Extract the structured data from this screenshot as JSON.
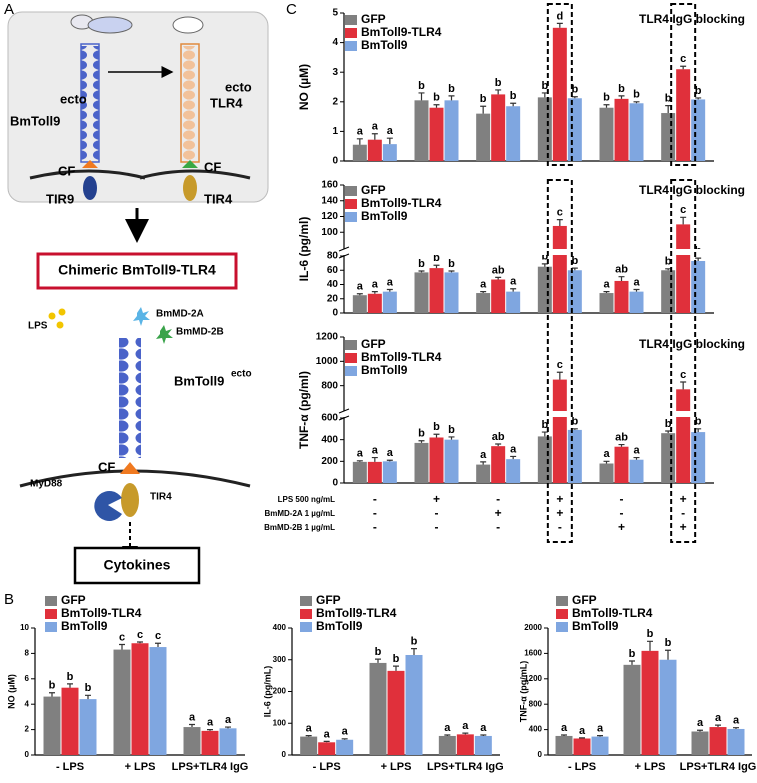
{
  "panel_labels": [
    "A",
    "B",
    "C"
  ],
  "diagram": {
    "top_left_label": "BmToll9",
    "top_left_sup": "ecto",
    "top_right_label": "TLR4",
    "top_right_sup": "ecto",
    "cf_left": "CF",
    "cf_right": "CF",
    "tir_left": "TIR9",
    "tir_right": "TIR4",
    "chimera_title": "Chimeric BmToll9-TLR4",
    "lps": "LPS",
    "md2a": "BmMD-2A",
    "md2b": "BmMD-2B",
    "ecto_label": "BmToll9",
    "ecto_sup": "ecto",
    "cf": "CF",
    "myd88": "MyD88",
    "tir4": "TIR4",
    "output": "Cytokines"
  },
  "conditions": {
    "rows": [
      {
        "label": "LPS 500 ng/mL",
        "values": [
          "-",
          "+",
          "-",
          "+",
          "-",
          "+"
        ]
      },
      {
        "label": "BmMD-2A 1 µg/mL",
        "values": [
          "-",
          "-",
          "+",
          "+",
          "-",
          "-"
        ]
      },
      {
        "label": "BmMD-2B 1 µg/mL",
        "values": [
          "-",
          "-",
          "-",
          "-",
          "+",
          "+"
        ]
      }
    ]
  },
  "chart_data": [
    {
      "type": "bar",
      "ylabel": "NO (µM)",
      "annotation": "TLR4 IgG blocking",
      "ylim": [
        0,
        5
      ],
      "yticks": [
        0,
        1,
        2,
        3,
        4,
        5
      ],
      "series": [
        {
          "name": "GFP",
          "color": "#808080",
          "values": [
            0.55,
            2.05,
            1.6,
            2.15,
            1.8,
            1.62
          ],
          "errors": [
            0.2,
            0.25,
            0.25,
            0.15,
            0.1,
            0.25
          ],
          "letters": [
            "a",
            "b",
            "b",
            "b",
            "b",
            "b"
          ]
        },
        {
          "name": "BmToll9-TLR4",
          "color": "#e0303b",
          "values": [
            0.72,
            1.8,
            2.25,
            4.5,
            2.1,
            3.1
          ],
          "errors": [
            0.2,
            0.1,
            0.15,
            0.15,
            0.1,
            0.1
          ],
          "letters": [
            "a",
            "b",
            "b",
            "d",
            "b",
            "c"
          ]
        },
        {
          "name": "BmToll9",
          "color": "#7fa6e0",
          "values": [
            0.57,
            2.05,
            1.85,
            2.12,
            1.95,
            2.08
          ],
          "errors": [
            0.2,
            0.15,
            0.1,
            0.05,
            0.05,
            0.05
          ],
          "letters": [
            "a",
            "b",
            "b",
            "b",
            "b",
            "b"
          ]
        }
      ]
    },
    {
      "type": "bar",
      "ylabel": "IL-6 (pg/ml)",
      "annotation": "TLR4 IgG blocking",
      "segments": [
        {
          "ylim": [
            0,
            80
          ],
          "yticks": [
            0,
            20,
            40,
            60,
            80
          ]
        },
        {
          "ylim": [
            80,
            160
          ],
          "yticks": [
            100,
            120,
            140,
            160
          ]
        }
      ],
      "series": [
        {
          "name": "GFP",
          "color": "#808080",
          "values": [
            25,
            57,
            28,
            65,
            28,
            60
          ],
          "errors": [
            2,
            2,
            2,
            4,
            2,
            2
          ],
          "letters": [
            "a",
            "b",
            "a",
            "b",
            "a",
            "b"
          ]
        },
        {
          "name": "BmToll9-TLR4",
          "color": "#e0303b",
          "values": [
            27,
            63,
            47,
            108,
            45,
            110
          ],
          "errors": [
            3,
            4,
            3,
            8,
            6,
            9
          ],
          "letters": [
            "a",
            "b",
            "ab",
            "c",
            "ab",
            "c"
          ]
        },
        {
          "name": "BmToll9",
          "color": "#7fa6e0",
          "values": [
            30,
            57,
            30,
            60,
            30,
            73
          ],
          "errors": [
            3,
            2,
            4,
            3,
            3,
            4
          ],
          "letters": [
            "a",
            "b",
            "a",
            "b",
            "a",
            "b"
          ]
        }
      ]
    },
    {
      "type": "bar",
      "ylabel": "TNF-α (pg/ml)",
      "annotation": "TLR4 IgG blocking",
      "segments": [
        {
          "ylim": [
            0,
            600
          ],
          "yticks": [
            0,
            200,
            400,
            600
          ]
        },
        {
          "ylim": [
            600,
            1200
          ],
          "yticks": [
            800,
            1000,
            1200
          ]
        }
      ],
      "series": [
        {
          "name": "GFP",
          "color": "#808080",
          "values": [
            195,
            370,
            170,
            430,
            180,
            460
          ],
          "errors": [
            10,
            20,
            25,
            40,
            20,
            20
          ],
          "letters": [
            "a",
            "b",
            "a",
            "b",
            "a",
            "b"
          ]
        },
        {
          "name": "BmToll9-TLR4",
          "color": "#e0303b",
          "values": [
            195,
            420,
            340,
            850,
            335,
            770
          ],
          "errors": [
            40,
            30,
            20,
            60,
            20,
            60
          ],
          "letters": [
            "a",
            "b",
            "ab",
            "c",
            "ab",
            "c"
          ]
        },
        {
          "name": "BmToll9",
          "color": "#7fa6e0",
          "values": [
            200,
            400,
            220,
            490,
            215,
            470
          ],
          "errors": [
            10,
            25,
            25,
            10,
            20,
            30
          ],
          "letters": [
            "a",
            "b",
            "a",
            "b",
            "a",
            "b"
          ]
        }
      ]
    },
    {
      "type": "bar",
      "ylabel": "NO (µM)",
      "categories": [
        "- LPS",
        "+ LPS",
        "LPS+TLR4 IgG"
      ],
      "ylim": [
        0,
        10
      ],
      "yticks": [
        0,
        2,
        4,
        6,
        8,
        10
      ],
      "series": [
        {
          "name": "GFP",
          "color": "#808080",
          "values": [
            4.6,
            8.3,
            2.2
          ],
          "errors": [
            0.3,
            0.4,
            0.2
          ],
          "letters": [
            "b",
            "c",
            "a"
          ]
        },
        {
          "name": "BmToll9-TLR4",
          "color": "#e0303b",
          "values": [
            5.3,
            8.8,
            1.9
          ],
          "errors": [
            0.3,
            0.1,
            0.1
          ],
          "letters": [
            "b",
            "c",
            "a"
          ]
        },
        {
          "name": "BmToll9",
          "color": "#7fa6e0",
          "values": [
            4.4,
            8.5,
            2.1
          ],
          "errors": [
            0.3,
            0.3,
            0.1
          ],
          "letters": [
            "b",
            "c",
            "a"
          ]
        }
      ]
    },
    {
      "type": "bar",
      "ylabel": "IL-6 (pg/mL)",
      "categories": [
        "- LPS",
        "+ LPS",
        "LPS+TLR4 IgG"
      ],
      "ylim": [
        0,
        400
      ],
      "yticks": [
        0,
        100,
        200,
        300,
        400
      ],
      "series": [
        {
          "name": "GFP",
          "color": "#808080",
          "values": [
            58,
            290,
            60
          ],
          "errors": [
            3,
            12,
            3
          ],
          "letters": [
            "a",
            "b",
            "a"
          ]
        },
        {
          "name": "BmToll9-TLR4",
          "color": "#e0303b",
          "values": [
            40,
            265,
            65
          ],
          "errors": [
            3,
            15,
            4
          ],
          "letters": [
            "a",
            "b",
            "a"
          ]
        },
        {
          "name": "BmToll9",
          "color": "#7fa6e0",
          "values": [
            48,
            315,
            60
          ],
          "errors": [
            3,
            20,
            3
          ],
          "letters": [
            "a",
            "b",
            "a"
          ]
        }
      ]
    },
    {
      "type": "bar",
      "ylabel": "TNF-α (pg/mL)",
      "categories": [
        "- LPS",
        "+ LPS",
        "LPS+TLR4 IgG"
      ],
      "ylim": [
        0,
        2000
      ],
      "yticks": [
        0,
        400,
        800,
        1200,
        1600,
        2000
      ],
      "series": [
        {
          "name": "GFP",
          "color": "#808080",
          "values": [
            300,
            1420,
            370
          ],
          "errors": [
            15,
            60,
            20
          ],
          "letters": [
            "a",
            "b",
            "a"
          ]
        },
        {
          "name": "BmToll9-TLR4",
          "color": "#e0303b",
          "values": [
            260,
            1640,
            440
          ],
          "errors": [
            10,
            150,
            30
          ],
          "letters": [
            "a",
            "b",
            "a"
          ]
        },
        {
          "name": "BmToll9",
          "color": "#7fa6e0",
          "values": [
            290,
            1500,
            410
          ],
          "errors": [
            15,
            150,
            20
          ],
          "letters": [
            "a",
            "b",
            "a"
          ]
        }
      ]
    }
  ]
}
